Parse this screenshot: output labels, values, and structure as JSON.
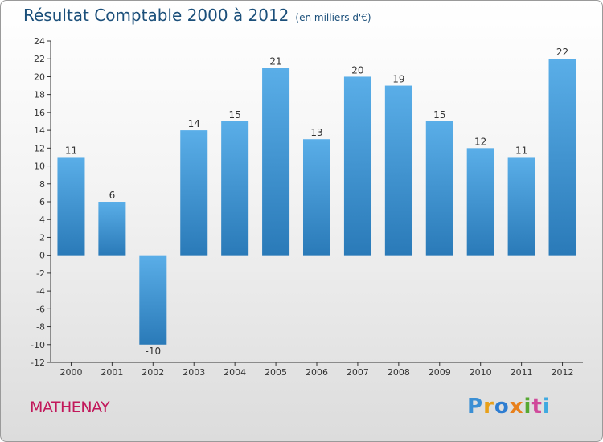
{
  "title": "Résultat Comptable 2000 à 2012",
  "unit_note": "(en milliers d'€)",
  "commune": "MATHENAY",
  "logo": {
    "text": "Proxiti",
    "letters": [
      "P",
      "r",
      "o",
      "x",
      "i",
      "t",
      "i"
    ],
    "colors": [
      "#3b8fd4",
      "#e8a019",
      "#2e7dd1",
      "#e8801c",
      "#56a832",
      "#d04a9b",
      "#3fa9e0"
    ]
  },
  "colors": {
    "bar_top": "#5aaee8",
    "bar_bottom": "#2a7ab8",
    "grid": "#c8c8c8",
    "axis": "#333333",
    "label": "#333333"
  },
  "chart_data": {
    "type": "bar",
    "title": "Résultat Comptable 2000 à 2012",
    "xlabel": "",
    "ylabel": "",
    "categories": [
      "2000",
      "2001",
      "2002",
      "2003",
      "2004",
      "2005",
      "2006",
      "2007",
      "2008",
      "2009",
      "2010",
      "2011",
      "2012"
    ],
    "values": [
      11,
      6,
      -10,
      14,
      15,
      21,
      13,
      20,
      19,
      15,
      12,
      11,
      22
    ],
    "value_labels": [
      "11",
      "6",
      "-10",
      "14",
      "15",
      "21",
      "13",
      "20",
      "19",
      "15",
      "12",
      "11",
      "22"
    ],
    "ylim": [
      -12,
      24
    ],
    "yticks": [
      -12,
      -10,
      -8,
      -6,
      -4,
      -2,
      0,
      2,
      4,
      6,
      8,
      10,
      12,
      14,
      16,
      18,
      20,
      22,
      24
    ],
    "grid": false
  }
}
